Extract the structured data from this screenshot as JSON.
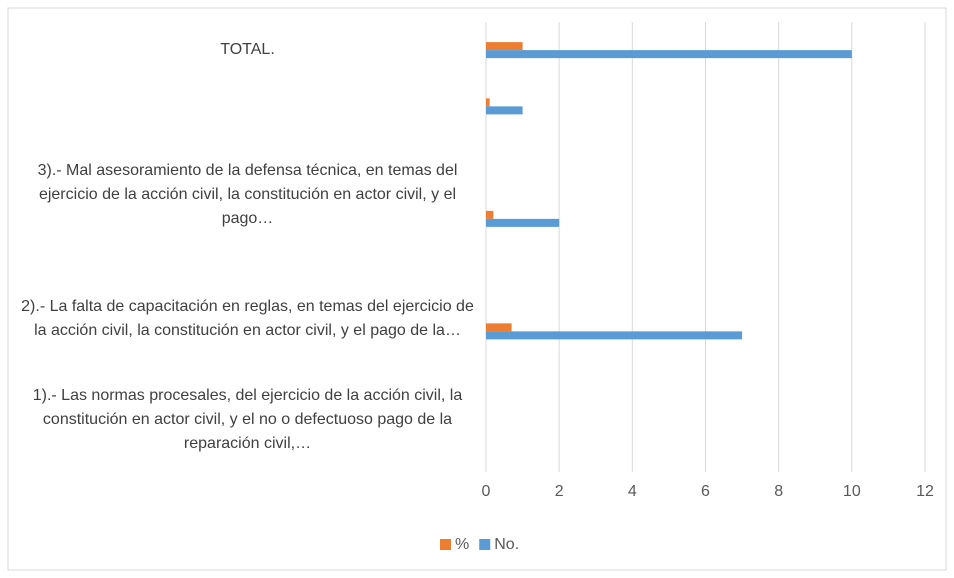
{
  "chart_data": {
    "type": "bar",
    "orientation": "horizontal",
    "categories": [
      "1).- Las normas procesales, del ejercicio de la acción civil, la constitución en actor civil, y el no o defectuoso pago de la reparación civil,…",
      null,
      "2).- La falta de capacitación en reglas, en temas del ejercicio de la acción civil, la constitución en actor civil, y el pago de la…",
      null,
      "3).- Mal asesoramiento de la defensa técnica, en temas del ejercicio de la acción civil, la constitución en actor civil, y el pago…",
      null,
      null,
      "TOTAL."
    ],
    "series": [
      {
        "name": "%",
        "color": "#ed7d31",
        "values": [
          0,
          null,
          0.7,
          null,
          0.2,
          null,
          0.1,
          1
        ]
      },
      {
        "name": "No.",
        "color": "#5b9bd5",
        "values": [
          0,
          null,
          7,
          null,
          2,
          null,
          1,
          10
        ]
      }
    ],
    "xlim": [
      0,
      12
    ],
    "xticks": [
      0,
      2,
      4,
      6,
      8,
      10,
      12
    ],
    "grid": true,
    "legend": "bottom"
  }
}
